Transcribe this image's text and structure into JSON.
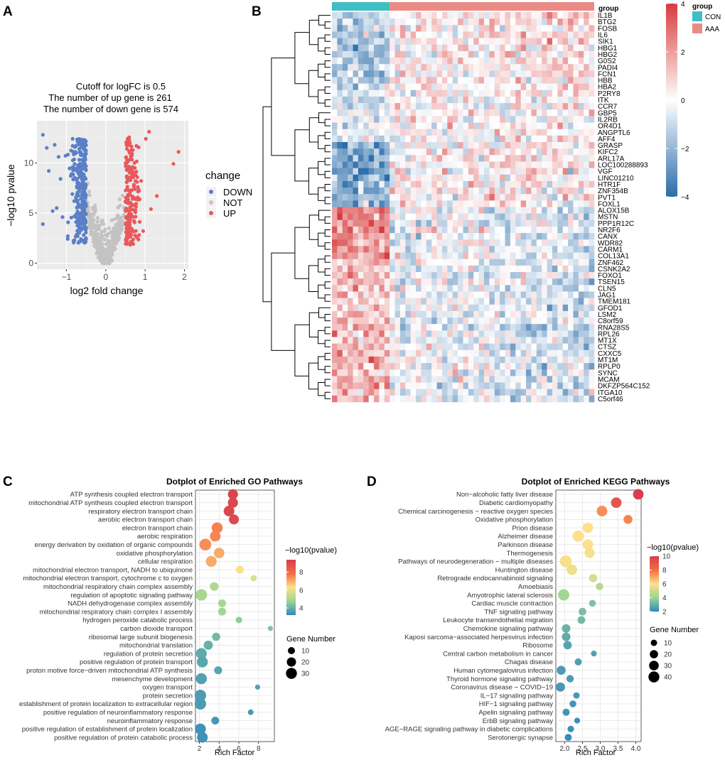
{
  "panels": {
    "a": "A",
    "b": "B",
    "c": "C",
    "d": "D"
  },
  "chart_data": [
    {
      "type": "scatter",
      "panel": "A",
      "title_lines": [
        "Cutoff for logFC is 0.5",
        "The number of up gene is 261",
        "The number of down gene is 574"
      ],
      "xlabel": "log2 fold change",
      "ylabel": "−log10 pvalue",
      "xlim": [
        -1.75,
        2.1
      ],
      "ylim": [
        -0.6,
        14.2
      ],
      "xticks": [
        -1,
        0,
        1,
        2
      ],
      "xtick_labels": [
        "−1",
        "0",
        "1",
        "2"
      ],
      "yticks": [
        0,
        5,
        10
      ],
      "ytick_labels": [
        "0",
        "5",
        "10"
      ],
      "logfc_cutoff": 0.5,
      "up_count": 261,
      "down_count": 574,
      "legend_title": "change",
      "legend": [
        {
          "label": "DOWN",
          "color": "#5b7fc7"
        },
        {
          "label": "NOT",
          "color": "#c3c3c3"
        },
        {
          "label": "UP",
          "color": "#e8585c"
        }
      ],
      "outliers": [
        {
          "x": -1.6,
          "y": 12.8,
          "g": "DOWN"
        },
        {
          "x": -1.5,
          "y": 11.5,
          "g": "DOWN"
        },
        {
          "x": -1.3,
          "y": 11.8,
          "g": "DOWN"
        },
        {
          "x": -1.45,
          "y": 9.2,
          "g": "DOWN"
        },
        {
          "x": -1.35,
          "y": 5.2,
          "g": "DOWN"
        },
        {
          "x": -1.6,
          "y": 3.9,
          "g": "DOWN"
        },
        {
          "x": -1.25,
          "y": 5.5,
          "g": "DOWN"
        },
        {
          "x": -1.15,
          "y": 8.4,
          "g": "DOWN"
        },
        {
          "x": -1.1,
          "y": 4.6,
          "g": "DOWN"
        },
        {
          "x": -1.2,
          "y": 10.6,
          "g": "DOWN"
        },
        {
          "x": 1.85,
          "y": 11.1,
          "g": "UP"
        },
        {
          "x": 1.72,
          "y": 9.9,
          "g": "UP"
        },
        {
          "x": 1.3,
          "y": 6.7,
          "g": "UP"
        },
        {
          "x": 1.1,
          "y": 13.1,
          "g": "UP"
        },
        {
          "x": 1.02,
          "y": 12.4,
          "g": "UP"
        },
        {
          "x": 1.15,
          "y": 5.4,
          "g": "UP"
        },
        {
          "x": 0.95,
          "y": 3.2,
          "g": "UP"
        },
        {
          "x": 0.9,
          "y": 8.2,
          "g": "UP"
        }
      ]
    },
    {
      "type": "heatmap",
      "panel": "B",
      "annotation_label": "group",
      "groups": [
        {
          "label": "CON",
          "color": "#3fbfc3",
          "n": 11
        },
        {
          "label": "AAA",
          "color": "#e98b84",
          "n": 39
        }
      ],
      "color_scale": {
        "min": -4,
        "max": 4,
        "ticks": [
          4,
          2,
          0,
          -2,
          -4
        ],
        "tick_labels": [
          "4",
          "2",
          "0",
          "−2",
          "−4"
        ],
        "low": "#2b6ca9",
        "mid": "#ffffff",
        "high": "#d73b3d"
      },
      "genes": [
        "IL1B",
        "BTG2",
        "FOSB",
        "IL6",
        "SIK1",
        "HBG1",
        "HBG2",
        "G0S2",
        "PADI4",
        "FCN1",
        "HBB",
        "HBA2",
        "P2RY8",
        "ITK",
        "CCR7",
        "GBP5",
        "IL2RB",
        "OR4D1",
        "ANGPTL6",
        "AFF4",
        "GRASP",
        "KIFC2",
        "ARL17A",
        "LOC100288893",
        "VGF",
        "LINC01210",
        "HTR1F",
        "ZNF354B",
        "PVT1",
        "FOXL1",
        "ALOX15B",
        "MSTN",
        "PPP1R12C",
        "NR2F6",
        "CANX",
        "WDR82",
        "CARM1",
        "COL13A1",
        "ZNF462",
        "CSNK2A2",
        "FOXO1",
        "TSEN15",
        "CLN5",
        "JAG1",
        "TMEM181",
        "GFOD1",
        "LSM2",
        "C8orf59",
        "RNA28S5",
        "RPL26",
        "MT1X",
        "CTSZ",
        "CXXC5",
        "MT1M",
        "RPLP0",
        "SYNC",
        "MCAM",
        "DKFZP564C152",
        "ITGA10",
        "C5orf46"
      ],
      "cluster_pattern": [
        {
          "rows": [
            0,
            12
          ],
          "con": -1.4,
          "aaa": 0.6
        },
        {
          "rows": [
            12,
            20
          ],
          "con": -0.6,
          "aaa": 0.3
        },
        {
          "rows": [
            20,
            30
          ],
          "con": -2.2,
          "aaa": 0.4
        },
        {
          "rows": [
            30,
            38
          ],
          "con": 2.2,
          "aaa": -0.5
        },
        {
          "rows": [
            38,
            48
          ],
          "con": 1.2,
          "aaa": -0.6
        },
        {
          "rows": [
            48,
            60
          ],
          "con": 1.4,
          "aaa": -0.7
        }
      ]
    },
    {
      "type": "scatter",
      "subtype": "dotplot",
      "panel": "C",
      "title": "Dotplot of Enriched GO Pathways",
      "xlabel": "Rich Factor",
      "xlim": [
        1.6,
        9.6
      ],
      "xticks": [
        2,
        4,
        6,
        8
      ],
      "xtick_labels": [
        "2",
        "4",
        "6",
        "8"
      ],
      "color_legend_title": "−log10(pvalue)",
      "color_range": [
        3.2,
        9.4
      ],
      "color_ticks": [
        8,
        6,
        4
      ],
      "color_tick_labels": [
        "8",
        "6",
        "4"
      ],
      "size_legend_title": "Gene Number",
      "size_legend": [
        10,
        20,
        30
      ],
      "size_legend_labels": [
        "10",
        "20",
        "30"
      ],
      "pathways": [
        {
          "term": "ATP synthesis coupled electron transport",
          "rich": 5.4,
          "logp": 9.2,
          "genes": 25
        },
        {
          "term": "mitochondrial ATP synthesis coupled electron transport",
          "rich": 5.4,
          "logp": 9.1,
          "genes": 25
        },
        {
          "term": "respiratory electron transport chain",
          "rich": 5.0,
          "logp": 9.1,
          "genes": 28
        },
        {
          "term": "aerobic electron transport chain",
          "rich": 5.5,
          "logp": 9.0,
          "genes": 24
        },
        {
          "term": "electron transport chain",
          "rich": 3.8,
          "logp": 7.6,
          "genes": 30
        },
        {
          "term": "aerobic respiration",
          "rich": 3.6,
          "logp": 7.5,
          "genes": 28
        },
        {
          "term": "energy derivation by oxidation of organic compounds",
          "rich": 2.6,
          "logp": 7.4,
          "genes": 36
        },
        {
          "term": "oxidative phosphorylation",
          "rich": 4.0,
          "logp": 7.0,
          "genes": 27
        },
        {
          "term": "cellular respiration",
          "rich": 3.2,
          "logp": 7.0,
          "genes": 30
        },
        {
          "term": "mitochondrial electron transport, NADH to ubiquinone",
          "rich": 6.1,
          "logp": 6.2,
          "genes": 13
        },
        {
          "term": "mitochondrial electron transport, cytochrome c to oxygen",
          "rich": 7.5,
          "logp": 5.8,
          "genes": 7
        },
        {
          "term": "mitochondrial respiratory chain complex assembly",
          "rich": 3.5,
          "logp": 5.1,
          "genes": 17
        },
        {
          "term": "regulation of apoptotic signaling pathway",
          "rich": 2.2,
          "logp": 5.0,
          "genes": 34
        },
        {
          "term": "NADH dehydrogenase complex assembly",
          "rich": 4.3,
          "logp": 5.0,
          "genes": 14
        },
        {
          "term": "mitochondrial respiratory chain complex I assembly",
          "rich": 4.3,
          "logp": 4.9,
          "genes": 14
        },
        {
          "term": "hydrogen peroxide catabolic process",
          "rich": 6.0,
          "logp": 4.6,
          "genes": 8
        },
        {
          "term": "carbon dioxide transport",
          "rich": 9.2,
          "logp": 4.4,
          "genes": 4
        },
        {
          "term": "ribosomal large subunit biogenesis",
          "rich": 3.7,
          "logp": 4.2,
          "genes": 15
        },
        {
          "term": "mitochondrial translation",
          "rich": 2.9,
          "logp": 4.0,
          "genes": 19
        },
        {
          "term": "regulation of protein secretion",
          "rich": 2.2,
          "logp": 3.9,
          "genes": 30
        },
        {
          "term": "positive regulation of protein transport",
          "rich": 2.3,
          "logp": 3.8,
          "genes": 30
        },
        {
          "term": "proton motive force−driven mitochondrial ATP synthesis",
          "rich": 3.9,
          "logp": 3.8,
          "genes": 14
        },
        {
          "term": "mesenchyme development",
          "rich": 2.2,
          "logp": 3.7,
          "genes": 31
        },
        {
          "term": "oxygen transport",
          "rich": 7.9,
          "logp": 3.7,
          "genes": 4
        },
        {
          "term": "protein secretion",
          "rich": 2.1,
          "logp": 3.6,
          "genes": 34
        },
        {
          "term": "establishment of protein localization to extracellular region",
          "rich": 2.1,
          "logp": 3.6,
          "genes": 34
        },
        {
          "term": "positive regulation of neuroinflammatory response",
          "rich": 7.2,
          "logp": 3.5,
          "genes": 5
        },
        {
          "term": "neuroinflammatory response",
          "rich": 3.6,
          "logp": 3.5,
          "genes": 13
        },
        {
          "term": "positive regulation of establishment of protein localization",
          "rich": 2.1,
          "logp": 3.4,
          "genes": 30
        },
        {
          "term": "positive regulation of protein catabolic process",
          "rich": 2.3,
          "logp": 3.4,
          "genes": 28
        }
      ]
    },
    {
      "type": "scatter",
      "subtype": "dotplot",
      "panel": "D",
      "title": "Dotplot of Enriched KEGG Pathways",
      "xlabel": "Rich Factor",
      "xlim": [
        1.75,
        4.15
      ],
      "xticks": [
        2.0,
        2.5,
        3.0,
        3.5,
        4.0
      ],
      "xtick_labels": [
        "2.0",
        "2.5",
        "3.0",
        "3.5",
        "4.0"
      ],
      "color_legend_title": "−log10(pvalue)",
      "color_range": [
        2.0,
        10.0
      ],
      "color_ticks": [
        10,
        8,
        6,
        4,
        2
      ],
      "color_tick_labels": [
        "10",
        "8",
        "6",
        "4",
        "2"
      ],
      "size_legend_title": "Gene Number",
      "size_legend": [
        10,
        20,
        30,
        40
      ],
      "size_legend_labels": [
        "10",
        "20",
        "30",
        "40"
      ],
      "pathways": [
        {
          "term": "Non−alcoholic fatty liver disease",
          "rich": 4.07,
          "logp": 10.0,
          "genes": 36
        },
        {
          "term": "Diabetic cardiomyopathy",
          "rich": 3.45,
          "logp": 9.0,
          "genes": 36
        },
        {
          "term": "Chemical carcinogenesis − reactive oxygen species",
          "rich": 3.05,
          "logp": 7.4,
          "genes": 38
        },
        {
          "term": "Oxidative phosphorylation",
          "rich": 3.78,
          "logp": 7.6,
          "genes": 25
        },
        {
          "term": "Prion disease",
          "rich": 2.65,
          "logp": 6.0,
          "genes": 36
        },
        {
          "term": "Alzheimer disease",
          "rich": 2.38,
          "logp": 6.0,
          "genes": 44
        },
        {
          "term": "Parkinson disease",
          "rich": 2.65,
          "logp": 6.0,
          "genes": 36
        },
        {
          "term": "Thermogenesis",
          "rich": 2.7,
          "logp": 5.9,
          "genes": 33
        },
        {
          "term": "Pathways of neurodegeneration − multiple diseases",
          "rich": 2.03,
          "logp": 5.9,
          "genes": 48
        },
        {
          "term": "Huntington disease",
          "rich": 2.2,
          "logp": 5.7,
          "genes": 36
        },
        {
          "term": "Retrograde endocannabinoid signaling",
          "rich": 2.8,
          "logp": 5.2,
          "genes": 20
        },
        {
          "term": "Amoebiasis",
          "rich": 2.98,
          "logp": 4.6,
          "genes": 15
        },
        {
          "term": "Amyotrophic lateral sclerosis",
          "rich": 1.97,
          "logp": 4.2,
          "genes": 44
        },
        {
          "term": "Cardiac muscle contraction",
          "rich": 2.78,
          "logp": 3.5,
          "genes": 12
        },
        {
          "term": "TNF signaling pathway",
          "rich": 2.5,
          "logp": 3.4,
          "genes": 17
        },
        {
          "term": "Leukocyte transendothelial migration",
          "rich": 2.47,
          "logp": 3.3,
          "genes": 17
        },
        {
          "term": "Chemokine signaling pathway",
          "rich": 2.04,
          "logp": 3.1,
          "genes": 22
        },
        {
          "term": "Kaposi sarcoma−associated herpesvirus infection",
          "rich": 2.04,
          "logp": 2.9,
          "genes": 22
        },
        {
          "term": "Ribosome",
          "rich": 2.08,
          "logp": 2.7,
          "genes": 21
        },
        {
          "term": "Central carbon metabolism in cancer",
          "rich": 2.82,
          "logp": 2.6,
          "genes": 8
        },
        {
          "term": "Chagas disease",
          "rich": 2.38,
          "logp": 2.6,
          "genes": 14
        },
        {
          "term": "Human cytomegalovirus infection",
          "rich": 1.9,
          "logp": 2.5,
          "genes": 25
        },
        {
          "term": "Thyroid hormone signaling pathway",
          "rich": 2.15,
          "logp": 2.5,
          "genes": 15
        },
        {
          "term": "Coronavirus disease − COVID−19",
          "rich": 1.88,
          "logp": 2.4,
          "genes": 26
        },
        {
          "term": "IL−17 signaling pathway",
          "rich": 2.33,
          "logp": 2.4,
          "genes": 10
        },
        {
          "term": "HIF−1 signaling pathway",
          "rich": 2.23,
          "logp": 2.3,
          "genes": 12
        },
        {
          "term": "Apelin signaling pathway",
          "rich": 2.04,
          "logp": 2.3,
          "genes": 14
        },
        {
          "term": "ErbB signaling pathway",
          "rich": 2.35,
          "logp": 2.2,
          "genes": 8
        },
        {
          "term": "AGE−RAGE signaling pathway in diabetic complications",
          "rich": 2.17,
          "logp": 2.2,
          "genes": 11
        },
        {
          "term": "Serotonergic synapse",
          "rich": 2.1,
          "logp": 2.1,
          "genes": 13
        }
      ]
    }
  ]
}
